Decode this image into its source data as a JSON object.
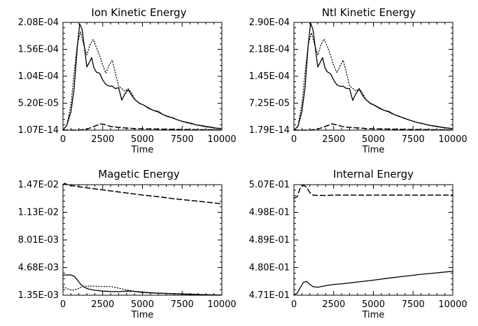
{
  "chart_data": [
    {
      "type": "line",
      "title": "Ion Kinetic Energy",
      "xlabel": "Time",
      "ylabel": "",
      "xlim": [
        0,
        10000
      ],
      "ylim": [
        1.07e-14,
        0.000208
      ],
      "xticks": [
        "0",
        "2500",
        "5000",
        "7500",
        "10000"
      ],
      "yticks": [
        "1.07E-14",
        "5.20E-05",
        "1.04E-04",
        "1.56E-04",
        "2.08E-04"
      ],
      "grid": false,
      "series": [
        {
          "style": "solid",
          "x": [
            0,
            250,
            500,
            700,
            900,
            1050,
            1200,
            1350,
            1500,
            1650,
            1800,
            1950,
            2100,
            2300,
            2500,
            2700,
            2900,
            3100,
            3300,
            3500,
            3700,
            3900,
            4100,
            4300,
            4500,
            4800,
            5100,
            5400,
            5700,
            6000,
            6300,
            6600,
            6900,
            7200,
            7500,
            7800,
            8100,
            8400,
            8700,
            9000,
            9300,
            9600,
            10000
          ],
          "y": [
            0,
            1e-05,
            3.5e-05,
            8e-05,
            0.00016,
            0.000205,
            0.000195,
            0.00016,
            0.000122,
            0.00013,
            0.00014,
            0.00012,
            0.000112,
            0.00011,
            9.7e-05,
            8.8e-05,
            8.5e-05,
            8.5e-05,
            8e-05,
            8.2e-05,
            5.8e-05,
            7e-05,
            7.8e-05,
            6.8e-05,
            6e-05,
            5.2e-05,
            4.8e-05,
            4.2e-05,
            3.8e-05,
            3.6e-05,
            3e-05,
            2.6e-05,
            2.4e-05,
            2e-05,
            1.7e-05,
            1.5e-05,
            1.3e-05,
            1e-05,
            9e-06,
            7e-06,
            6e-06,
            4e-06,
            3e-06
          ]
        },
        {
          "style": "dotted",
          "x": [
            0,
            250,
            500,
            700,
            900,
            1100,
            1300,
            1500,
            1700,
            1900,
            2100,
            2300,
            2500,
            2700,
            2900,
            3100,
            3300,
            3500,
            3700,
            3900,
            4100,
            4300,
            4500,
            4800,
            5100,
            5400,
            5700,
            6000,
            6300,
            6600,
            6900,
            7200,
            7500,
            7800,
            8100,
            8400,
            8700,
            9000,
            9300,
            9600,
            10000
          ],
          "y": [
            0,
            1e-05,
            5e-05,
            0.00011,
            0.000165,
            0.00019,
            0.000165,
            0.000145,
            0.000165,
            0.000175,
            0.00016,
            0.000145,
            0.000125,
            0.00011,
            0.000125,
            0.000135,
            0.00011,
            8.5e-05,
            8e-05,
            7.5e-05,
            8e-05,
            7.3e-05,
            6e-05,
            5.2e-05,
            4.8e-05,
            4.3e-05,
            3.8e-05,
            3.4e-05,
            3e-05,
            2.7e-05,
            2.3e-05,
            2e-05,
            1.7e-05,
            1.4e-05,
            1.2e-05,
            1e-05,
            8e-06,
            6e-06,
            5e-06,
            4e-06,
            3e-06
          ]
        },
        {
          "style": "dashed",
          "x": [
            0,
            1000,
            1500,
            1800,
            2100,
            2400,
            2700,
            3000,
            3300,
            3600,
            4000,
            4500,
            5000,
            6000,
            7000,
            8000,
            9000,
            10000
          ],
          "y": [
            0,
            0,
            2e-06,
            5e-06,
            9e-06,
            1.2e-05,
            1e-05,
            7e-06,
            6e-06,
            5e-06,
            4e-06,
            3e-06,
            2.5e-06,
            2e-06,
            1.5e-06,
            1e-06,
            8e-07,
            6e-07
          ]
        }
      ]
    },
    {
      "type": "line",
      "title": "Ntl Kinetic Energy",
      "xlabel": "Time",
      "ylabel": "",
      "xlim": [
        0,
        10000
      ],
      "ylim": [
        1.79e-14,
        0.00029
      ],
      "xticks": [
        "0",
        "2500",
        "5000",
        "7500",
        "10000"
      ],
      "yticks": [
        "1.79E-14",
        "7.25E-05",
        "1.45E-04",
        "2.18E-04",
        "2.90E-04"
      ],
      "grid": false,
      "series": [
        {
          "style": "solid",
          "x": [
            0,
            250,
            500,
            700,
            900,
            1050,
            1200,
            1350,
            1500,
            1650,
            1800,
            1950,
            2100,
            2300,
            2500,
            2700,
            2900,
            3100,
            3300,
            3500,
            3700,
            3900,
            4100,
            4300,
            4500,
            4800,
            5100,
            5400,
            5700,
            6000,
            6300,
            6600,
            6900,
            7200,
            7500,
            7800,
            8100,
            8400,
            8700,
            9000,
            9300,
            9600,
            10000
          ],
          "y": [
            0,
            1e-05,
            5e-05,
            0.000115,
            0.00023,
            0.000288,
            0.00027,
            0.00022,
            0.00017,
            0.000182,
            0.000195,
            0.000168,
            0.000157,
            0.000152,
            0.000135,
            0.000122,
            0.000118,
            0.000118,
            0.000112,
            0.000112,
            8e-05,
            9.8e-05,
            0.00011,
            9.5e-05,
            8.3e-05,
            7.2e-05,
            6.6e-05,
            5.8e-05,
            5.3e-05,
            5e-05,
            4.2e-05,
            3.7e-05,
            3.3e-05,
            2.8e-05,
            2.4e-05,
            2e-05,
            1.8e-05,
            1.4e-05,
            1.2e-05,
            1e-05,
            8e-06,
            6e-06,
            4e-06
          ]
        },
        {
          "style": "dotted",
          "x": [
            0,
            250,
            500,
            700,
            900,
            1100,
            1300,
            1500,
            1700,
            1900,
            2100,
            2300,
            2500,
            2700,
            2900,
            3100,
            3300,
            3500,
            3700,
            3900,
            4100,
            4300,
            4500,
            4800,
            5100,
            5400,
            5700,
            6000,
            6300,
            6600,
            6900,
            7200,
            7500,
            7800,
            8100,
            8400,
            8700,
            9000,
            9300,
            9600,
            10000
          ],
          "y": [
            0,
            1e-05,
            7e-05,
            0.000155,
            0.00023,
            0.000262,
            0.00023,
            0.000202,
            0.00023,
            0.000245,
            0.000225,
            0.000202,
            0.000175,
            0.000155,
            0.000172,
            0.000188,
            0.000155,
            0.00012,
            0.000112,
            0.000105,
            0.000112,
            0.000102,
            8.4e-05,
            7.3e-05,
            6.7e-05,
            6e-05,
            5.3e-05,
            4.7e-05,
            4.2e-05,
            3.8e-05,
            3.2e-05,
            2.8e-05,
            2.4e-05,
            2e-05,
            1.7e-05,
            1.4e-05,
            1.1e-05,
            9e-06,
            7e-06,
            6e-06,
            4e-06
          ]
        },
        {
          "style": "dashed",
          "x": [
            0,
            1000,
            1500,
            1800,
            2100,
            2400,
            2700,
            3000,
            3300,
            3600,
            4000,
            4500,
            5000,
            6000,
            7000,
            8000,
            9000,
            10000
          ],
          "y": [
            0,
            0,
            3e-06,
            7e-06,
            1.2e-05,
            1.7e-05,
            1.4e-05,
            1e-05,
            8e-06,
            7e-06,
            6e-06,
            4.5e-06,
            3.5e-06,
            2.8e-06,
            2e-06,
            1.5e-06,
            1.1e-06,
            8e-07
          ]
        }
      ]
    },
    {
      "type": "line",
      "title": "Magetic Energy",
      "xlabel": "Time",
      "ylabel": "",
      "xlim": [
        0,
        10000
      ],
      "ylim": [
        0.00135,
        0.0147
      ],
      "xticks": [
        "0",
        "2500",
        "5000",
        "7500",
        "10000"
      ],
      "yticks": [
        "1.35E-03",
        "4.68E-03",
        "8.01E-03",
        "1.13E-02",
        "1.47E-02"
      ],
      "grid": false,
      "series": [
        {
          "style": "solid",
          "x": [
            0,
            200,
            500,
            700,
            900,
            1100,
            1300,
            1600,
            2000,
            2500,
            3000,
            3500,
            4000,
            4500,
            5000,
            5500,
            6000,
            7000,
            8000,
            9000,
            10000
          ],
          "y": [
            0.00375,
            0.0038,
            0.0038,
            0.00365,
            0.0032,
            0.0027,
            0.00235,
            0.0021,
            0.00195,
            0.00185,
            0.0018,
            0.00178,
            0.00185,
            0.00182,
            0.00172,
            0.00165,
            0.0016,
            0.00152,
            0.00145,
            0.0014,
            0.00137
          ]
        },
        {
          "style": "dotted",
          "x": [
            0,
            300,
            600,
            900,
            1200,
            1500,
            2000,
            2500,
            3000,
            3500,
            4000,
            4500,
            5000,
            6000,
            7000,
            8000,
            9000,
            10000
          ],
          "y": [
            0.0024,
            0.0021,
            0.00195,
            0.0021,
            0.0024,
            0.00245,
            0.00245,
            0.0024,
            0.0024,
            0.0022,
            0.002,
            0.0018,
            0.00165,
            0.0016,
            0.00155,
            0.0015,
            0.00142,
            0.00138
          ]
        },
        {
          "style": "dashed",
          "x": [
            0,
            100,
            300,
            500,
            1000,
            2000,
            3000,
            4000,
            5000,
            6000,
            7000,
            8000,
            9000,
            10000
          ],
          "y": [
            0.0147,
            0.01485,
            0.0147,
            0.0146,
            0.01445,
            0.0142,
            0.01395,
            0.0137,
            0.01345,
            0.01325,
            0.013,
            0.0128,
            0.0126,
            0.0124
          ]
        }
      ]
    },
    {
      "type": "line",
      "title": "Internal Energy",
      "xlabel": "Time",
      "ylabel": "",
      "xlim": [
        0,
        10000
      ],
      "ylim": [
        0.471,
        0.507
      ],
      "xticks": [
        "0",
        "2500",
        "5000",
        "7500",
        "10000"
      ],
      "yticks": [
        "4.71E-01",
        "4.80E-01",
        "4.89E-01",
        "4.98E-01",
        "5.07E-01"
      ],
      "grid": false,
      "series": [
        {
          "style": "solid",
          "x": [
            0,
            200,
            400,
            600,
            800,
            1000,
            1200,
            1500,
            2000,
            2500,
            3000,
            4000,
            5000,
            6000,
            7000,
            8000,
            9000,
            10000
          ],
          "y": [
            0.4712,
            0.4716,
            0.4735,
            0.4752,
            0.4755,
            0.4745,
            0.4738,
            0.4736,
            0.4741,
            0.4745,
            0.4747,
            0.4753,
            0.4759,
            0.4766,
            0.4772,
            0.4778,
            0.4783,
            0.4788
          ]
        },
        {
          "style": "dashed",
          "x": [
            0,
            200,
            400,
            600,
            800,
            1000,
            1200,
            1500,
            2000,
            2500,
            3000,
            4000,
            5000,
            6000,
            7000,
            8000,
            9000,
            10000
          ],
          "y": [
            0.5025,
            0.5031,
            0.506,
            0.5068,
            0.5062,
            0.5044,
            0.5036,
            0.5035,
            0.5035,
            0.5036,
            0.5036,
            0.5036,
            0.5036,
            0.5036,
            0.5036,
            0.5036,
            0.5036,
            0.5036
          ]
        }
      ]
    }
  ]
}
